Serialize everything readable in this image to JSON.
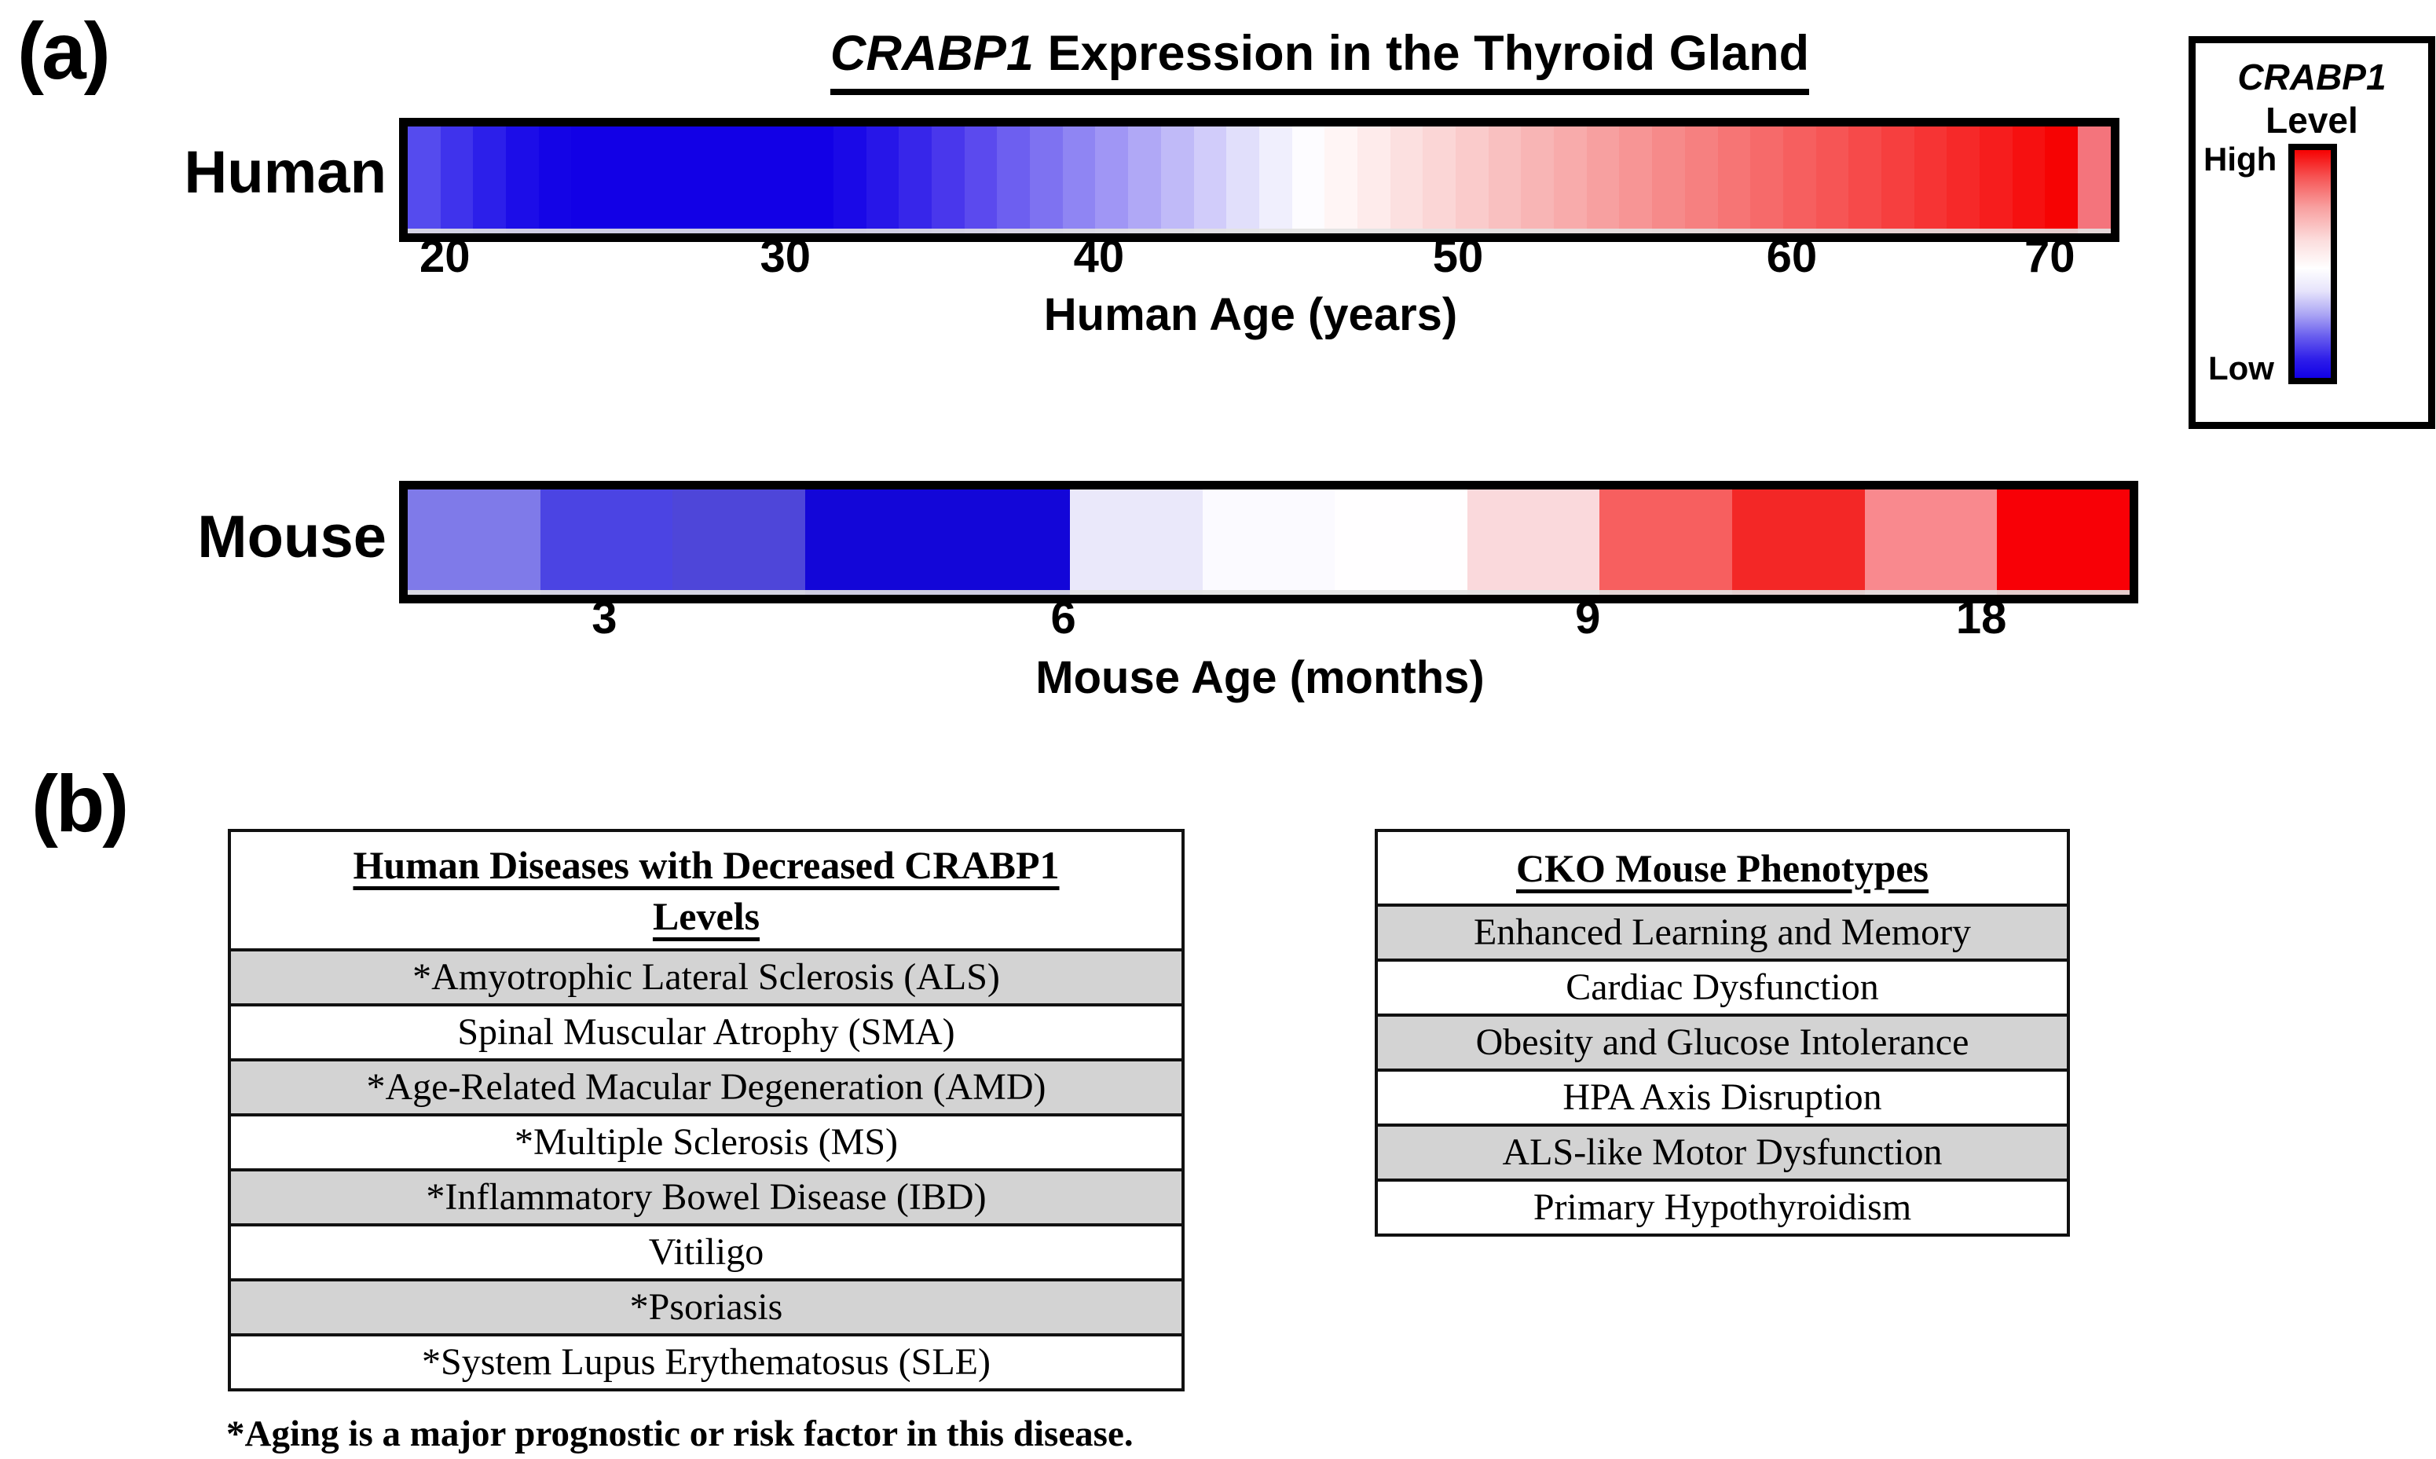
{
  "panel_a": {
    "label": "(a)",
    "title": {
      "gene": "CRABP1",
      "rest": " Expression in the Thyroid Gland"
    },
    "legend": {
      "title_gene": "CRABP1",
      "title_rest": "Level",
      "high": "High",
      "low": "Low",
      "gradient": [
        "#f60202 0%",
        "#f65555 12%",
        "#f89f9f 25%",
        "#fcdede 40%",
        "#ffffff 52%",
        "#e6e3fb 62%",
        "#aca6f4 72%",
        "#675cee 82%",
        "#2d1de9 92%",
        "#1200e6 100%"
      ]
    }
  },
  "panel_b": {
    "label": "(b)",
    "diseases_table": {
      "header_line1": "Human Diseases with Decreased CRABP1",
      "header_line2": "Levels",
      "rows": [
        {
          "text": "*Amyotrophic Lateral Sclerosis (ALS)",
          "shaded": true
        },
        {
          "text": "Spinal Muscular Atrophy (SMA)",
          "shaded": false
        },
        {
          "text": "*Age-Related Macular Degeneration (AMD)",
          "shaded": true
        },
        {
          "text": "*Multiple Sclerosis (MS)",
          "shaded": false
        },
        {
          "text": "*Inflammatory Bowel Disease (IBD)",
          "shaded": true
        },
        {
          "text": "Vitiligo",
          "shaded": false
        },
        {
          "text": "*Psoriasis",
          "shaded": true
        },
        {
          "text": "*System Lupus Erythematosus (SLE)",
          "shaded": false
        }
      ]
    },
    "phenotypes_table": {
      "header": "CKO Mouse Phenotypes",
      "rows": [
        {
          "text": "Enhanced Learning and Memory",
          "shaded": true
        },
        {
          "text": "Cardiac Dysfunction",
          "shaded": false
        },
        {
          "text": "Obesity and Glucose Intolerance",
          "shaded": true
        },
        {
          "text": "HPA Axis Disruption",
          "shaded": false
        },
        {
          "text": "ALS-like Motor Dysfunction",
          "shaded": true
        },
        {
          "text": "Primary Hypothyroidism",
          "shaded": false
        }
      ]
    },
    "footnote": "*Aging is a major prognostic or risk factor in this disease."
  },
  "colors": {
    "row_shade": "#d3d3d3",
    "table_border": "#111111",
    "low_blue": "#1200e6",
    "high_red": "#f60202"
  },
  "chart_data": {
    "type": "heatmap",
    "title": "CRABP1 Expression in the Thyroid Gland",
    "colorbar": {
      "title": "CRABP1 Level",
      "max_label": "High",
      "min_label": "Low",
      "colormap": "blue-white-red",
      "position": "right"
    },
    "rows": [
      {
        "key": "human",
        "name": "Human",
        "xlabel": "Human Age (years)",
        "x_range": [
          20,
          71
        ],
        "n_cells": 52,
        "ticks": [
          {
            "label": "20",
            "value": 20,
            "pct": 2.2
          },
          {
            "label": "30",
            "value": 30,
            "pct": 22.4
          },
          {
            "label": "40",
            "value": 40,
            "pct": 41.0
          },
          {
            "label": "50",
            "value": 50,
            "pct": 62.3
          },
          {
            "label": "60",
            "value": 60,
            "pct": 82.1
          },
          {
            "label": "70",
            "value": 70,
            "pct": 97.4
          }
        ],
        "cell_colors": [
          "#554bee",
          "#3f33ec",
          "#2c1fea",
          "#1c0de8",
          "#1404e6",
          "#1200e6",
          "#1200e6",
          "#1200e6",
          "#1200e6",
          "#1200e6",
          "#1200e6",
          "#1200e6",
          "#1200e6",
          "#1a09e7",
          "#2716e8",
          "#3726ea",
          "#4937ec",
          "#5b4aee",
          "#6d5ff0",
          "#7e72f1",
          "#8f85f3",
          "#a096f5",
          "#b0a8f6",
          "#c0baf8",
          "#d1ccfa",
          "#e1dffb",
          "#f0effd",
          "#fdfcff",
          "#fff5f5",
          "#feebeb",
          "#fce0e0",
          "#fbd6d6",
          "#facbcb",
          "#f9c0c0",
          "#f8b5b5",
          "#f8abab",
          "#f7a0a0",
          "#f79595",
          "#f68a8a",
          "#f68080",
          "#f67575",
          "#f66a6a",
          "#f65f5f",
          "#f65555",
          "#f64a4a",
          "#f63f3f",
          "#f63434",
          "#f62929",
          "#f61d1d",
          "#f61010",
          "#f60303",
          "#f4747c"
        ]
      },
      {
        "key": "mouse",
        "name": "Mouse",
        "xlabel": "Mouse Age (months)",
        "x_range": [
          3,
          18
        ],
        "n_cells": 13,
        "ticks": [
          {
            "label": "3",
            "value": 3,
            "pct": 11.54
          },
          {
            "label": "6",
            "value": 6,
            "pct": 38.46
          },
          {
            "label": "9",
            "value": 9,
            "pct": 69.23
          },
          {
            "label": "18",
            "value": 18,
            "pct": 92.31
          }
        ],
        "cell_colors": [
          "#7f7ae9",
          "#4b44e3",
          "#4e46d9",
          "#1306d8",
          "#1306d8",
          "#eae8fa",
          "#fbfaff",
          "#fffeff",
          "#fad9dc",
          "#f75f5f",
          "#f32726",
          "#f9898e",
          "#f80006"
        ]
      }
    ]
  }
}
